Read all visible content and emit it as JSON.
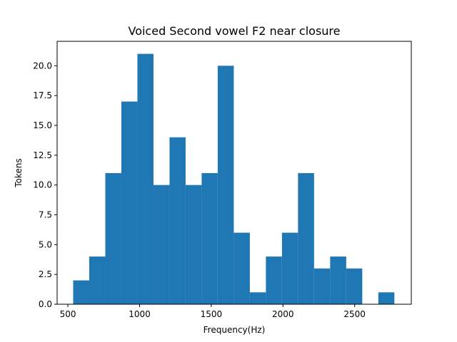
{
  "chart_data": {
    "type": "bar",
    "title": "Voiced Second vowel F2 near closure",
    "xlabel": "Frequency(Hz)",
    "ylabel": "Tokens",
    "xlim": [
      425,
      2895
    ],
    "ylim": [
      0,
      22.05
    ],
    "xticks": [
      500,
      1000,
      1500,
      2000,
      2500
    ],
    "yticks": [
      0.0,
      2.5,
      5.0,
      7.5,
      10.0,
      12.5,
      15.0,
      17.5,
      20.0
    ],
    "xtick_labels": [
      "500",
      "1000",
      "1500",
      "2000",
      "2500"
    ],
    "ytick_labels": [
      "0.0",
      "2.5",
      "5.0",
      "7.5",
      "10.0",
      "12.5",
      "15.0",
      "17.5",
      "20.0"
    ],
    "bin_edges": [
      537,
      649,
      761,
      873,
      985,
      1097,
      1209,
      1321,
      1433,
      1545,
      1657,
      1769,
      1881,
      1993,
      2105,
      2217,
      2329,
      2441,
      2553,
      2665,
      2777
    ],
    "counts": [
      2,
      4,
      11,
      17,
      21,
      10,
      14,
      10,
      11,
      20,
      6,
      1,
      4,
      6,
      11,
      3,
      4,
      3,
      0,
      1
    ],
    "bar_color": "#1f77b4",
    "grid": false
  }
}
